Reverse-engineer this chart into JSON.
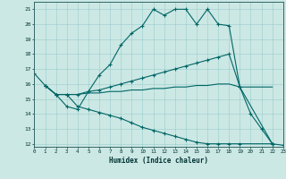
{
  "xlabel": "Humidex (Indice chaleur)",
  "background_color": "#cce8e4",
  "line_color": "#006666",
  "grid_color": "#99cccc",
  "xlim": [
    0,
    23
  ],
  "ylim": [
    11.8,
    21.5
  ],
  "xticks": [
    0,
    1,
    2,
    3,
    4,
    5,
    6,
    7,
    8,
    9,
    10,
    11,
    12,
    13,
    14,
    15,
    16,
    17,
    18,
    19,
    20,
    21,
    22,
    23
  ],
  "yticks": [
    12,
    13,
    14,
    15,
    16,
    17,
    18,
    19,
    20,
    21
  ],
  "line1_x": [
    0,
    1,
    2,
    3,
    4,
    5,
    6,
    7,
    8,
    9,
    10,
    11,
    12,
    13,
    14,
    15,
    16,
    17,
    18,
    19,
    20,
    21,
    22,
    23
  ],
  "line1_y": [
    16.7,
    15.9,
    15.3,
    14.5,
    14.3,
    15.5,
    16.6,
    17.3,
    18.6,
    19.4,
    19.9,
    21.0,
    20.6,
    21.0,
    21.0,
    20.0,
    21.0,
    20.0,
    19.9,
    15.8,
    14.0,
    13.0,
    12.0,
    11.9
  ],
  "line2_x": [
    1,
    2,
    3,
    4,
    5,
    6,
    7,
    8,
    9,
    10,
    11,
    12,
    13,
    14,
    15,
    16,
    17,
    18,
    19,
    22
  ],
  "line2_y": [
    15.9,
    15.3,
    15.3,
    15.3,
    15.5,
    15.6,
    15.8,
    16.0,
    16.2,
    16.4,
    16.6,
    16.8,
    17.0,
    17.2,
    17.4,
    17.6,
    17.8,
    18.0,
    15.8,
    12.0
  ],
  "line3_x": [
    1,
    2,
    3,
    4,
    5,
    6,
    7,
    8,
    9,
    10,
    11,
    12,
    13,
    14,
    15,
    16,
    17,
    18,
    19,
    22
  ],
  "line3_y": [
    15.9,
    15.3,
    15.3,
    15.3,
    15.4,
    15.4,
    15.5,
    15.5,
    15.6,
    15.6,
    15.7,
    15.7,
    15.8,
    15.8,
    15.9,
    15.9,
    16.0,
    16.0,
    15.8,
    15.8
  ],
  "line4_x": [
    1,
    2,
    3,
    4,
    5,
    6,
    7,
    8,
    9,
    10,
    11,
    12,
    13,
    14,
    15,
    16,
    17,
    18,
    19,
    22
  ],
  "line4_y": [
    15.9,
    15.3,
    15.3,
    14.5,
    14.3,
    14.1,
    13.9,
    13.7,
    13.4,
    13.1,
    12.9,
    12.7,
    12.5,
    12.3,
    12.1,
    12.0,
    12.0,
    12.0,
    12.0,
    12.0
  ]
}
